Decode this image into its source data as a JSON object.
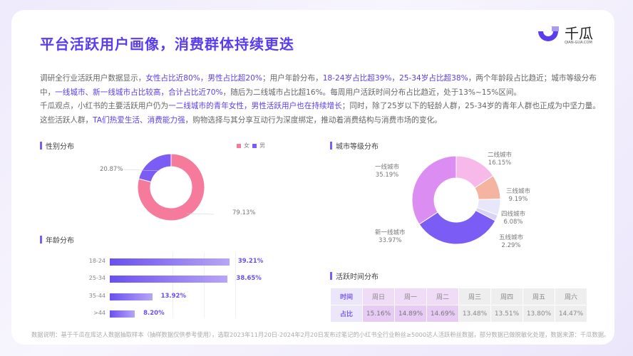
{
  "title": "平台活跃用户画像，消费群体持续更迭",
  "logo": {
    "name": "千瓜",
    "url": "QIAN-GUA.COM"
  },
  "paragraph1": [
    {
      "t": "调研全行业活跃用户数据显示，",
      "h": false
    },
    {
      "t": "女性占比近80%，男性占比超20%",
      "h": true
    },
    {
      "t": "；用户年龄分布，",
      "h": false
    },
    {
      "t": "18-24岁占比超39%，25-34岁占比超38%",
      "h": true
    },
    {
      "t": "，两个年龄段占比趋近；城市等级分布中，",
      "h": false
    },
    {
      "t": "一线城市、新一线城市占比较高，合计占比近70%",
      "h": true
    },
    {
      "t": "，随后为二线城市占比超16%。每周用户活跃时间分布占比趋近，处于13%~15%区间。",
      "h": false
    }
  ],
  "paragraph2": [
    {
      "t": "千瓜观点，小红书的主要活跃用户仍为",
      "h": false
    },
    {
      "t": "一二线城市的青年女性，男性活跃用户也在持续增长",
      "h": true
    },
    {
      "t": "；同时，除了25岁以下的轻龄人群，25-34岁的青年人群也正成为中坚力量。这些活跃人群，",
      "h": false
    },
    {
      "t": "TA们热爱生活、消费能力强",
      "h": true
    },
    {
      "t": "，购物选择与其分享互动行为深度绑定，推动着消费结构与消费市场的变化。",
      "h": false
    }
  ],
  "sections": {
    "gender": "性别分布",
    "age": "年龄分布",
    "city": "城市等级分布",
    "time": "活跃时间分布"
  },
  "chart_data": [
    {
      "type": "pie",
      "title": "性别分布",
      "legend": [
        "女",
        "男"
      ],
      "legend_position": "top-right",
      "categories": [
        "女",
        "男"
      ],
      "values": [
        79.13,
        20.87
      ],
      "labels": [
        "79.13%",
        "20.87%"
      ],
      "colors": [
        "#f57a9c",
        "#7b5cf5"
      ]
    },
    {
      "type": "bar",
      "orientation": "horizontal",
      "title": "年龄分布",
      "categories": [
        "18-24",
        "25-34",
        "35-44",
        ">44"
      ],
      "values": [
        39.21,
        38.65,
        13.92,
        8.2
      ],
      "labels": [
        "39.21%",
        "38.65%",
        "13.92%",
        "8.20%"
      ]
    },
    {
      "type": "pie",
      "title": "城市等级分布",
      "categories": [
        "二线城市",
        "三线城市",
        "四线城市",
        "五线城市",
        "新一线城市",
        "一线城市"
      ],
      "values": [
        16.15,
        9.19,
        6.08,
        2.29,
        33.97,
        35.19
      ],
      "labels": [
        "16.15%",
        "9.19%",
        "6.08%",
        "2.29%",
        "33.97%",
        "35.19%"
      ],
      "colors": [
        "#f7b8ea",
        "#f5b4a0",
        "#e8e6fb",
        "#d9d3fa",
        "#7b5cf5",
        "#dc8df2"
      ]
    },
    {
      "type": "table",
      "title": "活跃时间分布",
      "row_headers": [
        "时间",
        "占比"
      ],
      "columns": [
        "周日",
        "周一",
        "周二",
        "周三",
        "周四",
        "周五",
        "周六"
      ],
      "values": [
        "15.16%",
        "14.89%",
        "14.69%",
        "13.48%",
        "13.51%",
        "13.80%",
        "14.47%"
      ]
    }
  ],
  "footer": "数据说明：基于千瓜在库达人数据抽取样本（抽样数据仅供参考使用），选取2023年11月20日-2024年2月20日发布过笔记的小红书全行业粉丝≥5000达人活跃粉丝数据，部分数据已做脱敏化处理，数据来源：千瓜数据。"
}
